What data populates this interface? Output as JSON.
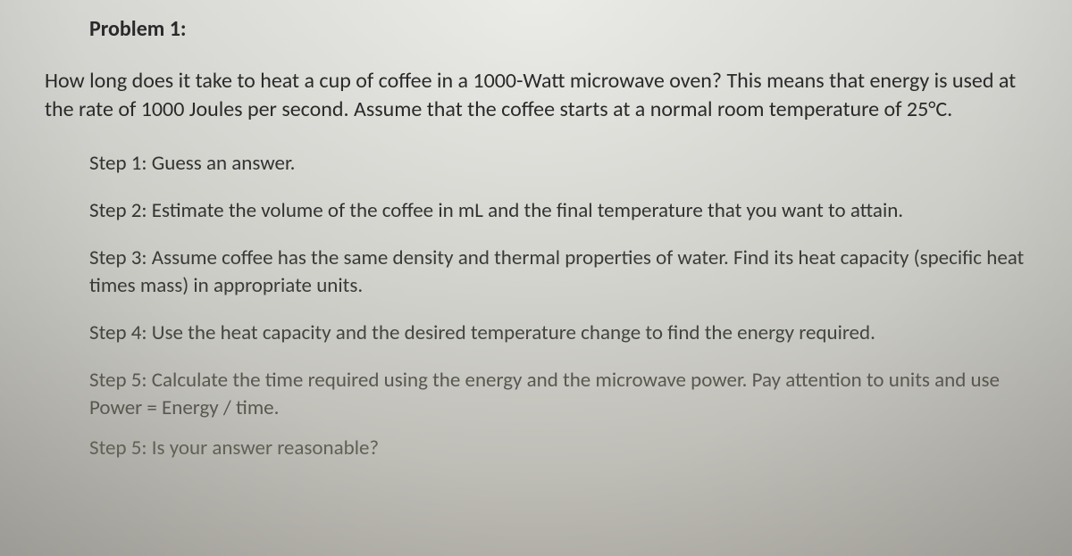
{
  "problem": {
    "title": "Problem 1:",
    "question": "How long does it take to heat a cup of coffee in a 1000-Watt microwave oven? This means that energy is used at the rate of 1000 Joules per second. Assume that the coffee starts at a normal room temperature of 25°C.",
    "steps": [
      "Step 1: Guess an answer.",
      "Step 2: Estimate the volume of the coffee in mL and the final temperature that you want to attain.",
      "Step 3: Assume coffee has the same density and thermal properties of water. Find its heat capacity (specific heat times mass) in appropriate units.",
      "Step 4: Use the heat capacity and the desired temperature change to find the energy required.",
      "Step 5: Calculate the time required using the energy and the microwave power. Pay attention to units and use Power = Energy / time.",
      "Step 5: Is your answer reasonable?"
    ]
  },
  "styling": {
    "background_gradient_top": "#e8e8e4",
    "background_gradient_mid": "#dcdcd6",
    "background_gradient_bottom": "#c8c6be",
    "text_color_primary": "#2a2a2a",
    "font_family": "Calibri, Segoe UI, Arial, sans-serif",
    "title_fontsize": 24,
    "body_fontsize": 24,
    "step_fontsize": 23,
    "line_height": 1.35
  }
}
